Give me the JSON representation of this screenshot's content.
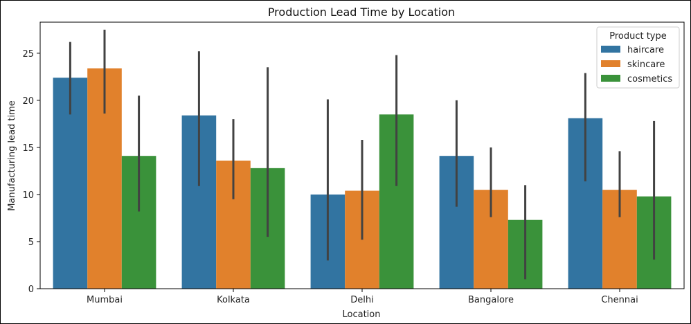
{
  "chart_data": {
    "type": "bar",
    "title": "Production Lead Time by Location",
    "xlabel": "Location",
    "ylabel": "Manufacturing lead time",
    "categories": [
      "Mumbai",
      "Kolkata",
      "Delhi",
      "Bangalore",
      "Chennai"
    ],
    "ylim": [
      0,
      28.3
    ],
    "yticks": [
      0,
      5,
      10,
      15,
      20,
      25
    ],
    "legend": {
      "title": "Product type",
      "position": "top-right"
    },
    "grid": false,
    "series": [
      {
        "name": "haircare",
        "color": "#3274a1",
        "values": [
          22.4,
          18.4,
          10.0,
          14.1,
          18.1
        ],
        "ci_low": [
          18.5,
          10.9,
          3.0,
          8.7,
          11.4
        ],
        "ci_high": [
          26.2,
          25.2,
          20.1,
          20.0,
          22.9
        ]
      },
      {
        "name": "skincare",
        "color": "#e1812c",
        "values": [
          23.4,
          13.6,
          10.4,
          10.5,
          10.5
        ],
        "ci_low": [
          18.6,
          9.5,
          5.2,
          7.6,
          7.6
        ],
        "ci_high": [
          27.5,
          18.0,
          15.8,
          15.0,
          14.6
        ]
      },
      {
        "name": "cosmetics",
        "color": "#3a923a",
        "values": [
          14.1,
          12.8,
          18.5,
          7.3,
          9.8
        ],
        "ci_low": [
          8.2,
          5.5,
          10.9,
          1.0,
          3.1
        ],
        "ci_high": [
          20.5,
          23.5,
          24.8,
          11.0,
          17.8
        ]
      }
    ]
  }
}
